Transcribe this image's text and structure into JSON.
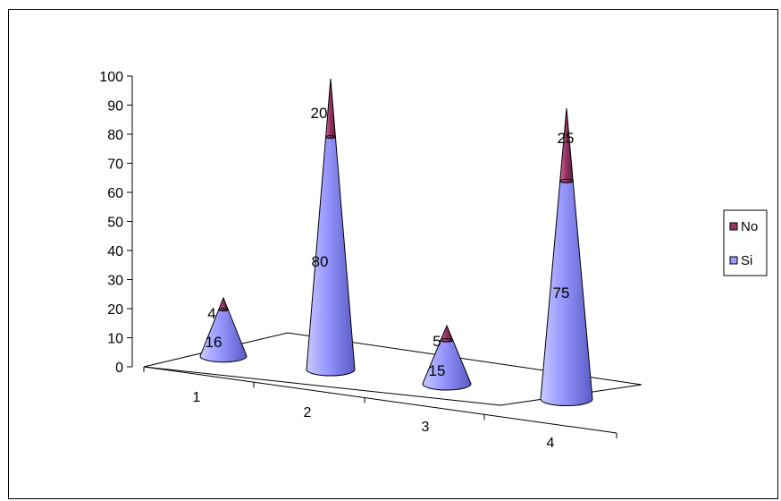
{
  "chart_data": {
    "type": "bar",
    "style": "3d-cone-stacked",
    "title": "",
    "xlabel": "",
    "ylabel": "",
    "categories": [
      "1",
      "2",
      "3",
      "4"
    ],
    "ylim": [
      0,
      100
    ],
    "yticks": [
      "0",
      "10",
      "20",
      "30",
      "40",
      "50",
      "60",
      "70",
      "80",
      "90",
      "100"
    ],
    "series": [
      {
        "name": "Si",
        "values": [
          16,
          80,
          15,
          75
        ],
        "color": "#9999ff"
      },
      {
        "name": "No",
        "values": [
          4,
          20,
          5,
          25
        ],
        "color": "#993366"
      }
    ],
    "legend": {
      "position": "right",
      "items": [
        "No",
        "Si"
      ]
    },
    "grid": false
  }
}
